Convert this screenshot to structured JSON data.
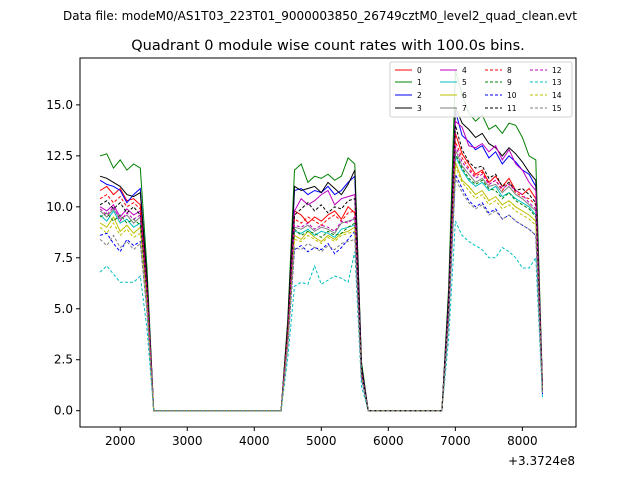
{
  "chart_data": {
    "type": "line",
    "suptitle": "Data file: modeM0/AS1T03_223T01_9000003850_26749cztM0_level2_quad_clean.evt",
    "title": "Quadrant 0 module wise count rates with 100.0s bins.",
    "xlabel": "",
    "ylabel": "",
    "x_offset_label": "+3.3724e8",
    "xlim": [
      1400,
      8800
    ],
    "ylim": [
      -0.8,
      17.3
    ],
    "xticks": [
      2000,
      3000,
      4000,
      5000,
      6000,
      7000,
      8000
    ],
    "xtick_labels": [
      "2000",
      "3000",
      "4000",
      "5000",
      "6000",
      "7000",
      "8000"
    ],
    "yticks": [
      0.0,
      2.5,
      5.0,
      7.5,
      10.0,
      12.5,
      15.0
    ],
    "ytick_labels": [
      "0.0",
      "2.5",
      "5.0",
      "7.5",
      "10.0",
      "12.5",
      "15.0"
    ],
    "legend_position": "top-right",
    "x": [
      1700,
      1800,
      1900,
      2000,
      2100,
      2200,
      2300,
      2400,
      2500,
      2600,
      2700,
      2800,
      2900,
      3000,
      3100,
      3200,
      3300,
      3400,
      3500,
      3600,
      3700,
      3800,
      3900,
      4000,
      4100,
      4200,
      4300,
      4400,
      4500,
      4600,
      4700,
      4800,
      4900,
      5000,
      5100,
      5200,
      5300,
      5400,
      5500,
      5600,
      5700,
      5800,
      5900,
      6000,
      6100,
      6200,
      6300,
      6400,
      6500,
      6600,
      6700,
      6800,
      6900,
      7000,
      7100,
      7200,
      7300,
      7400,
      7500,
      7600,
      7700,
      7800,
      7900,
      8000,
      8100,
      8200,
      8300
    ],
    "series": [
      {
        "name": "0",
        "color": "#ff0000",
        "dash": "solid",
        "values": [
          10.8,
          11.0,
          10.6,
          10.9,
          10.3,
          10.4,
          10.1,
          6.0,
          0.0,
          0.0,
          0.0,
          0.0,
          0.0,
          0.0,
          0.0,
          0.0,
          0.0,
          0.0,
          0.0,
          0.0,
          0.0,
          0.0,
          0.0,
          0.0,
          0.0,
          0.0,
          0.0,
          0.0,
          4.0,
          9.8,
          9.6,
          9.2,
          9.5,
          9.3,
          9.6,
          9.8,
          9.4,
          10.0,
          9.7,
          2.0,
          0.0,
          0.0,
          0.0,
          0.0,
          0.0,
          0.0,
          0.0,
          0.0,
          0.0,
          0.0,
          0.0,
          0.0,
          5.0,
          13.6,
          12.6,
          12.1,
          11.6,
          11.8,
          11.2,
          11.5,
          11.0,
          11.4,
          10.8,
          10.6,
          10.9,
          10.4,
          1.0
        ]
      },
      {
        "name": "1",
        "color": "#008000",
        "dash": "solid",
        "values": [
          12.5,
          12.6,
          11.9,
          12.3,
          11.8,
          12.1,
          11.9,
          7.0,
          0.0,
          0.0,
          0.0,
          0.0,
          0.0,
          0.0,
          0.0,
          0.0,
          0.0,
          0.0,
          0.0,
          0.0,
          0.0,
          0.0,
          0.0,
          0.0,
          0.0,
          0.0,
          0.0,
          0.0,
          4.5,
          11.8,
          12.1,
          11.2,
          11.5,
          11.4,
          11.6,
          11.3,
          11.5,
          12.4,
          12.1,
          2.4,
          0.0,
          0.0,
          0.0,
          0.0,
          0.0,
          0.0,
          0.0,
          0.0,
          0.0,
          0.0,
          0.0,
          0.0,
          6.0,
          16.7,
          15.5,
          14.6,
          14.2,
          14.5,
          13.8,
          14.0,
          13.6,
          14.1,
          14.0,
          13.4,
          12.5,
          12.3,
          1.2
        ]
      },
      {
        "name": "2",
        "color": "#0000ff",
        "dash": "solid",
        "values": [
          11.3,
          11.1,
          11.0,
          10.8,
          10.2,
          10.6,
          10.9,
          6.5,
          0.0,
          0.0,
          0.0,
          0.0,
          0.0,
          0.0,
          0.0,
          0.0,
          0.0,
          0.0,
          0.0,
          0.0,
          0.0,
          0.0,
          0.0,
          0.0,
          0.0,
          0.0,
          0.0,
          0.0,
          4.2,
          10.8,
          10.9,
          10.6,
          10.8,
          10.7,
          11.0,
          10.6,
          10.8,
          11.2,
          11.5,
          2.2,
          0.0,
          0.0,
          0.0,
          0.0,
          0.0,
          0.0,
          0.0,
          0.0,
          0.0,
          0.0,
          0.0,
          0.0,
          5.5,
          14.7,
          13.5,
          13.2,
          12.8,
          13.0,
          12.4,
          12.7,
          12.1,
          12.5,
          12.2,
          11.8,
          11.6,
          11.0,
          1.1
        ]
      },
      {
        "name": "3",
        "color": "#000000",
        "dash": "solid",
        "values": [
          11.5,
          11.4,
          11.2,
          11.0,
          10.6,
          10.5,
          10.7,
          6.5,
          0.0,
          0.0,
          0.0,
          0.0,
          0.0,
          0.0,
          0.0,
          0.0,
          0.0,
          0.0,
          0.0,
          0.0,
          0.0,
          0.0,
          0.0,
          0.0,
          0.0,
          0.0,
          0.0,
          0.0,
          4.3,
          11.0,
          10.8,
          10.9,
          11.0,
          10.7,
          11.2,
          10.9,
          10.6,
          11.1,
          11.8,
          2.2,
          0.0,
          0.0,
          0.0,
          0.0,
          0.0,
          0.0,
          0.0,
          0.0,
          0.0,
          0.0,
          0.0,
          0.0,
          5.6,
          14.9,
          14.1,
          13.8,
          13.4,
          13.6,
          13.1,
          12.9,
          12.5,
          12.9,
          12.6,
          12.2,
          11.7,
          11.3,
          1.1
        ]
      },
      {
        "name": "4",
        "color": "#bf00bf",
        "dash": "solid",
        "values": [
          10.0,
          9.8,
          10.1,
          9.5,
          9.9,
          9.6,
          9.8,
          5.8,
          0.0,
          0.0,
          0.0,
          0.0,
          0.0,
          0.0,
          0.0,
          0.0,
          0.0,
          0.0,
          0.0,
          0.0,
          0.0,
          0.0,
          0.0,
          0.0,
          0.0,
          0.0,
          0.0,
          0.0,
          3.8,
          9.8,
          10.4,
          10.1,
          10.3,
          10.6,
          10.8,
          10.1,
          10.4,
          10.5,
          10.6,
          2.0,
          0.0,
          0.0,
          0.0,
          0.0,
          0.0,
          0.0,
          0.0,
          0.0,
          0.0,
          0.0,
          0.0,
          0.0,
          5.2,
          14.2,
          13.9,
          13.0,
          12.9,
          13.1,
          12.7,
          13.0,
          12.3,
          12.8,
          12.1,
          11.8,
          11.2,
          10.8,
          1.0
        ]
      },
      {
        "name": "5",
        "color": "#00bfbf",
        "dash": "solid",
        "values": [
          9.6,
          9.3,
          9.8,
          9.2,
          9.4,
          9.0,
          9.2,
          5.5,
          0.0,
          0.0,
          0.0,
          0.0,
          0.0,
          0.0,
          0.0,
          0.0,
          0.0,
          0.0,
          0.0,
          0.0,
          0.0,
          0.0,
          0.0,
          0.0,
          0.0,
          0.0,
          0.0,
          0.0,
          3.6,
          8.8,
          8.7,
          8.9,
          8.6,
          8.8,
          8.7,
          8.5,
          8.9,
          9.0,
          9.1,
          1.8,
          0.0,
          0.0,
          0.0,
          0.0,
          0.0,
          0.0,
          0.0,
          0.0,
          0.0,
          0.0,
          0.0,
          0.0,
          4.8,
          12.5,
          11.8,
          11.3,
          11.0,
          11.2,
          10.8,
          11.0,
          10.5,
          10.7,
          10.4,
          10.2,
          10.0,
          9.6,
          0.9
        ]
      },
      {
        "name": "6",
        "color": "#bfbf00",
        "dash": "solid",
        "values": [
          9.2,
          9.0,
          9.5,
          8.8,
          9.1,
          8.7,
          9.0,
          5.3,
          0.0,
          0.0,
          0.0,
          0.0,
          0.0,
          0.0,
          0.0,
          0.0,
          0.0,
          0.0,
          0.0,
          0.0,
          0.0,
          0.0,
          0.0,
          0.0,
          0.0,
          0.0,
          0.0,
          0.0,
          3.5,
          8.6,
          8.4,
          8.8,
          8.5,
          8.3,
          8.6,
          8.4,
          8.7,
          8.8,
          9.0,
          1.7,
          0.0,
          0.0,
          0.0,
          0.0,
          0.0,
          0.0,
          0.0,
          0.0,
          0.0,
          0.0,
          0.0,
          0.0,
          4.6,
          12.2,
          11.3,
          11.0,
          10.6,
          10.8,
          10.3,
          10.5,
          10.1,
          10.3,
          10.0,
          9.8,
          9.6,
          9.3,
          0.9
        ]
      },
      {
        "name": "7",
        "color": "#808080",
        "dash": "solid",
        "values": [
          9.8,
          9.5,
          9.9,
          9.4,
          9.6,
          9.2,
          9.5,
          5.6,
          0.0,
          0.0,
          0.0,
          0.0,
          0.0,
          0.0,
          0.0,
          0.0,
          0.0,
          0.0,
          0.0,
          0.0,
          0.0,
          0.0,
          0.0,
          0.0,
          0.0,
          0.0,
          0.0,
          0.0,
          3.7,
          9.0,
          8.9,
          9.1,
          8.8,
          9.0,
          8.9,
          8.7,
          9.2,
          9.3,
          9.4,
          1.8,
          0.0,
          0.0,
          0.0,
          0.0,
          0.0,
          0.0,
          0.0,
          0.0,
          0.0,
          0.0,
          0.0,
          0.0,
          4.9,
          12.8,
          12.0,
          11.6,
          11.2,
          11.4,
          11.0,
          11.1,
          10.7,
          11.0,
          10.6,
          10.4,
          10.1,
          9.8,
          0.9
        ]
      },
      {
        "name": "8",
        "color": "#ff0000",
        "dash": "dashed",
        "values": [
          10.4,
          10.6,
          10.2,
          10.5,
          10.0,
          10.2,
          9.9,
          5.9,
          0.0,
          0.0,
          0.0,
          0.0,
          0.0,
          0.0,
          0.0,
          0.0,
          0.0,
          0.0,
          0.0,
          0.0,
          0.0,
          0.0,
          0.0,
          0.0,
          0.0,
          0.0,
          0.0,
          0.0,
          3.9,
          9.4,
          9.2,
          9.5,
          9.3,
          9.1,
          9.4,
          9.6,
          9.3,
          9.7,
          9.8,
          1.9,
          0.0,
          0.0,
          0.0,
          0.0,
          0.0,
          0.0,
          0.0,
          0.0,
          0.0,
          0.0,
          0.0,
          0.0,
          5.1,
          13.2,
          12.4,
          11.9,
          11.5,
          11.7,
          11.1,
          11.3,
          10.8,
          11.2,
          10.7,
          10.5,
          10.4,
          10.1,
          1.0
        ]
      },
      {
        "name": "9",
        "color": "#008000",
        "dash": "dashed",
        "values": [
          9.5,
          9.7,
          9.3,
          9.6,
          9.2,
          9.4,
          9.1,
          5.4,
          0.0,
          0.0,
          0.0,
          0.0,
          0.0,
          0.0,
          0.0,
          0.0,
          0.0,
          0.0,
          0.0,
          0.0,
          0.0,
          0.0,
          0.0,
          0.0,
          0.0,
          0.0,
          0.0,
          0.0,
          3.6,
          8.9,
          8.6,
          8.8,
          8.7,
          8.5,
          8.8,
          8.6,
          8.7,
          9.0,
          9.2,
          1.8,
          0.0,
          0.0,
          0.0,
          0.0,
          0.0,
          0.0,
          0.0,
          0.0,
          0.0,
          0.0,
          0.0,
          0.0,
          4.8,
          12.6,
          11.9,
          11.4,
          11.1,
          11.3,
          10.9,
          10.8,
          10.4,
          10.7,
          10.3,
          10.1,
          9.9,
          9.5,
          0.9
        ]
      },
      {
        "name": "10",
        "color": "#0000ff",
        "dash": "dashed",
        "values": [
          8.6,
          8.7,
          8.2,
          7.8,
          8.4,
          8.1,
          8.3,
          4.9,
          0.0,
          0.0,
          0.0,
          0.0,
          0.0,
          0.0,
          0.0,
          0.0,
          0.0,
          0.0,
          0.0,
          0.0,
          0.0,
          0.0,
          0.0,
          0.0,
          0.0,
          0.0,
          0.0,
          0.0,
          3.2,
          7.9,
          8.1,
          7.8,
          8.0,
          7.9,
          8.2,
          7.7,
          8.0,
          8.4,
          8.8,
          1.6,
          0.0,
          0.0,
          0.0,
          0.0,
          0.0,
          0.0,
          0.0,
          0.0,
          0.0,
          0.0,
          0.0,
          0.0,
          4.4,
          11.6,
          10.9,
          10.3,
          10.0,
          10.2,
          9.7,
          9.9,
          9.4,
          9.6,
          9.3,
          9.1,
          8.9,
          8.6,
          0.8
        ]
      },
      {
        "name": "11",
        "color": "#000000",
        "dash": "dashed",
        "values": [
          10.1,
          10.3,
          9.9,
          10.2,
          9.7,
          10.0,
          9.6,
          5.7,
          0.0,
          0.0,
          0.0,
          0.0,
          0.0,
          0.0,
          0.0,
          0.0,
          0.0,
          0.0,
          0.0,
          0.0,
          0.0,
          0.0,
          0.0,
          0.0,
          0.0,
          0.0,
          0.0,
          0.0,
          3.8,
          9.6,
          9.9,
          10.2,
          9.8,
          10.1,
          9.7,
          10.0,
          9.9,
          10.3,
          10.4,
          2.0,
          0.0,
          0.0,
          0.0,
          0.0,
          0.0,
          0.0,
          0.0,
          0.0,
          0.0,
          0.0,
          0.0,
          0.0,
          5.3,
          14.0,
          12.8,
          12.2,
          11.9,
          12.0,
          11.4,
          11.6,
          11.0,
          11.2,
          10.8,
          10.9,
          10.6,
          10.2,
          1.0
        ]
      },
      {
        "name": "12",
        "color": "#bf00bf",
        "dash": "dashed",
        "values": [
          9.9,
          9.6,
          10.0,
          9.3,
          9.7,
          9.4,
          9.6,
          5.7,
          0.0,
          0.0,
          0.0,
          0.0,
          0.0,
          0.0,
          0.0,
          0.0,
          0.0,
          0.0,
          0.0,
          0.0,
          0.0,
          0.0,
          0.0,
          0.0,
          0.0,
          0.0,
          0.0,
          0.0,
          3.7,
          9.1,
          9.0,
          9.2,
          8.9,
          9.1,
          9.0,
          8.8,
          9.3,
          9.2,
          9.5,
          1.8,
          0.0,
          0.0,
          0.0,
          0.0,
          0.0,
          0.0,
          0.0,
          0.0,
          0.0,
          0.0,
          0.0,
          0.0,
          5.0,
          13.0,
          12.2,
          11.8,
          11.4,
          11.6,
          11.1,
          11.3,
          10.9,
          11.1,
          10.8,
          10.6,
          10.2,
          9.9,
          0.9
        ]
      },
      {
        "name": "13",
        "color": "#00bfbf",
        "dash": "dashed",
        "values": [
          6.8,
          7.1,
          6.7,
          6.3,
          6.3,
          6.3,
          6.6,
          4.0,
          0.0,
          0.0,
          0.0,
          0.0,
          0.0,
          0.0,
          0.0,
          0.0,
          0.0,
          0.0,
          0.0,
          0.0,
          0.0,
          0.0,
          0.0,
          0.0,
          0.0,
          0.0,
          0.0,
          0.0,
          2.6,
          6.1,
          6.3,
          6.2,
          7.1,
          6.2,
          6.4,
          6.6,
          6.5,
          6.3,
          7.8,
          1.2,
          0.0,
          0.0,
          0.0,
          0.0,
          0.0,
          0.0,
          0.0,
          0.0,
          0.0,
          0.0,
          0.0,
          0.0,
          3.5,
          9.3,
          8.6,
          8.3,
          8.1,
          7.9,
          7.5,
          7.5,
          8.0,
          7.8,
          7.5,
          7.0,
          7.0,
          7.5,
          0.6
        ]
      },
      {
        "name": "14",
        "color": "#bfbf00",
        "dash": "dashed",
        "values": [
          9.0,
          8.7,
          9.2,
          8.6,
          8.9,
          8.5,
          8.7,
          5.2,
          0.0,
          0.0,
          0.0,
          0.0,
          0.0,
          0.0,
          0.0,
          0.0,
          0.0,
          0.0,
          0.0,
          0.0,
          0.0,
          0.0,
          0.0,
          0.0,
          0.0,
          0.0,
          0.0,
          0.0,
          3.4,
          8.4,
          8.3,
          8.6,
          8.4,
          8.2,
          8.5,
          8.3,
          8.6,
          8.7,
          8.8,
          1.7,
          0.0,
          0.0,
          0.0,
          0.0,
          0.0,
          0.0,
          0.0,
          0.0,
          0.0,
          0.0,
          0.0,
          0.0,
          4.5,
          12.0,
          11.2,
          10.8,
          10.4,
          10.6,
          10.1,
          10.3,
          9.9,
          10.1,
          9.8,
          9.6,
          9.4,
          9.1,
          0.9
        ]
      },
      {
        "name": "15",
        "color": "#808080",
        "dash": "dashed",
        "values": [
          8.4,
          8.1,
          8.6,
          8.0,
          8.3,
          7.9,
          8.2,
          4.8,
          0.0,
          0.0,
          0.0,
          0.0,
          0.0,
          0.0,
          0.0,
          0.0,
          0.0,
          0.0,
          0.0,
          0.0,
          0.0,
          0.0,
          0.0,
          0.0,
          0.0,
          0.0,
          0.0,
          0.0,
          3.2,
          8.0,
          7.9,
          8.2,
          8.0,
          7.8,
          8.1,
          7.9,
          8.2,
          8.3,
          8.4,
          1.6,
          0.0,
          0.0,
          0.0,
          0.0,
          0.0,
          0.0,
          0.0,
          0.0,
          0.0,
          0.0,
          0.0,
          0.0,
          4.3,
          11.4,
          10.7,
          10.2,
          9.9,
          10.1,
          9.6,
          9.8,
          9.4,
          9.6,
          9.3,
          9.1,
          8.9,
          8.6,
          0.8
        ]
      }
    ]
  }
}
